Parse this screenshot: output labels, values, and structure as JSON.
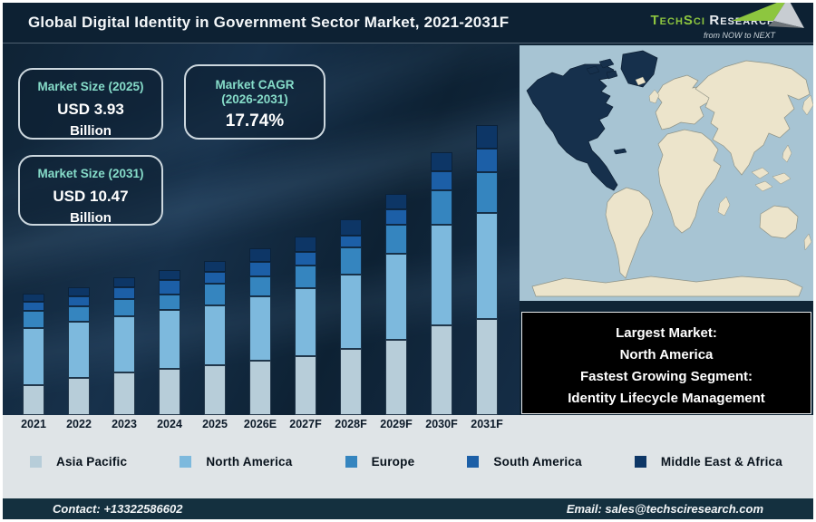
{
  "header": {
    "title": "Global Digital Identity in Government Sector Market, 2021-2031F",
    "logo": {
      "brand_primary": "TechSci",
      "brand_secondary": "Research",
      "tagline": "from NOW to NEXT",
      "brand_green": "#8dc63f"
    }
  },
  "stat_boxes": [
    {
      "title": "Market Size (2025)",
      "value": "USD 3.93",
      "unit": "Billion"
    },
    {
      "title": "Market CAGR (2026-2031)",
      "value": "17.74%"
    },
    {
      "title": "Market Size (2031)",
      "value": "USD 10.47",
      "unit": "Billion"
    }
  ],
  "chart_data": {
    "type": "bar",
    "stacked": true,
    "title": "Global Digital Identity in Government Sector Market, 2021-2031F",
    "categories": [
      "2021",
      "2022",
      "2023",
      "2024",
      "2025",
      "2026E",
      "2027F",
      "2028F",
      "2029F",
      "2030F",
      "2031F"
    ],
    "series": [
      {
        "name": "Asia Pacific",
        "color": "#b7cdd9",
        "values": [
          33,
          41,
          47,
          51,
          55,
          60,
          65,
          73,
          83,
          99,
          106
        ]
      },
      {
        "name": "North America",
        "color": "#7db9dd",
        "values": [
          63,
          62,
          62,
          65,
          66,
          71,
          75,
          82,
          95,
          111,
          117
        ]
      },
      {
        "name": "Europe",
        "color": "#3585bf",
        "values": [
          19,
          17,
          19,
          17,
          24,
          22,
          25,
          30,
          32,
          38,
          45
        ]
      },
      {
        "name": "South America",
        "color": "#1c5fa7",
        "values": [
          10,
          11,
          13,
          16,
          13,
          16,
          15,
          13,
          17,
          21,
          26
        ]
      },
      {
        "name": "Middle East & Africa",
        "color": "#0d3666",
        "values": [
          9,
          10,
          11,
          11,
          12,
          15,
          17,
          18,
          17,
          21,
          26
        ]
      }
    ],
    "value_units": "relative bar-height units (stylized infographic, no y-axis shown)",
    "anchors": {
      "market_size_2025_usd_billion": 3.93,
      "market_size_2031_usd_billion": 10.47,
      "cagr_2026_2031_percent": 17.74
    },
    "xlabel": "",
    "ylabel": "",
    "y_axis_visible": false,
    "grid": false,
    "legend_position": "bottom"
  },
  "map": {
    "highlight_region": "North America",
    "highlight_color": "#16304c",
    "ocean_color": "#a7c4d3",
    "land_color": "#ece4cb"
  },
  "callout_box": {
    "lines": [
      "Largest Market:",
      "North America",
      "Fastest Growing Segment:",
      "Identity Lifecycle Management"
    ]
  },
  "footer": {
    "contact": "Contact: +13322586602",
    "email": "Email: sales@techsciresearch.com"
  },
  "accent_colors": {
    "stat_title_teal": "#86dcc9",
    "header_bg": "#0d2133",
    "strip_bg": "#dfe4e7",
    "footer_bg": "#14303f"
  }
}
